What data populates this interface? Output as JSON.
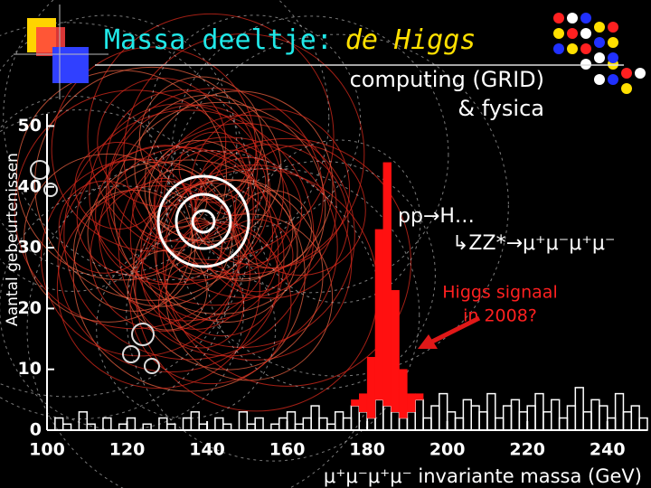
{
  "chart_data": {
    "type": "histogram",
    "title_parts": [
      "Massa deeltje:",
      "de Higgs"
    ],
    "subtitle_lines": [
      "computing (GRID)",
      "& fysica"
    ],
    "annotations": {
      "process_1": "pp→H…",
      "process_2": "↳ZZ*→μ⁺μ⁻μ⁺μ⁻",
      "signal_lines": [
        "Higgs signaal",
        "in 2008?"
      ]
    },
    "xlabel": "μ⁺μ⁻μ⁺μ⁻ invariante massa (GeV)",
    "ylabel": "Aantal gebeurtenissen",
    "xlim": [
      100,
      250
    ],
    "ylim": [
      0,
      52
    ],
    "xticks": [
      100,
      120,
      140,
      160,
      180,
      200,
      220,
      240
    ],
    "yticks": [
      0,
      10,
      20,
      30,
      40,
      50
    ],
    "bins": [
      100,
      102,
      104,
      106,
      108,
      110,
      112,
      114,
      116,
      118,
      120,
      122,
      124,
      126,
      128,
      130,
      132,
      134,
      136,
      138,
      140,
      142,
      144,
      146,
      148,
      150,
      152,
      154,
      156,
      158,
      160,
      162,
      164,
      166,
      168,
      170,
      172,
      174,
      176,
      178,
      180,
      182,
      184,
      186,
      188,
      190,
      192,
      194,
      196,
      198,
      200,
      202,
      204,
      206,
      208,
      210,
      212,
      214,
      216,
      218,
      220,
      222,
      224,
      226,
      228,
      230,
      232,
      234,
      236,
      238,
      240,
      242,
      244,
      246,
      248,
      250
    ],
    "series": [
      {
        "name": "achtergrond",
        "color": "#ffffff",
        "values": [
          0,
          2,
          1,
          0,
          3,
          1,
          0,
          2,
          0,
          1,
          2,
          0,
          1,
          0,
          2,
          1,
          0,
          2,
          3,
          1,
          0,
          2,
          1,
          0,
          3,
          1,
          2,
          0,
          1,
          2,
          3,
          1,
          2,
          4,
          2,
          1,
          3,
          2,
          4,
          3,
          2,
          5,
          4,
          3,
          2,
          3,
          5,
          2,
          4,
          6,
          3,
          2,
          5,
          4,
          3,
          6,
          2,
          4,
          5,
          3,
          4,
          6,
          3,
          5,
          2,
          4,
          7,
          3,
          5,
          4,
          2,
          6,
          3,
          4,
          2
        ]
      },
      {
        "name": "signaal",
        "color": "#ff1010",
        "values": [
          0,
          0,
          0,
          0,
          0,
          0,
          0,
          0,
          0,
          0,
          0,
          0,
          0,
          0,
          0,
          0,
          0,
          0,
          0,
          0,
          0,
          0,
          0,
          0,
          0,
          0,
          0,
          0,
          0,
          0,
          0,
          0,
          0,
          0,
          0,
          0,
          0,
          0,
          1,
          3,
          10,
          28,
          40,
          20,
          8,
          3,
          1,
          0,
          0,
          0,
          0,
          0,
          0,
          0,
          0,
          0,
          0,
          0,
          0,
          0,
          0,
          0,
          0,
          0,
          0,
          0,
          0,
          0,
          0,
          0,
          0,
          0,
          0,
          0,
          0
        ]
      }
    ]
  }
}
